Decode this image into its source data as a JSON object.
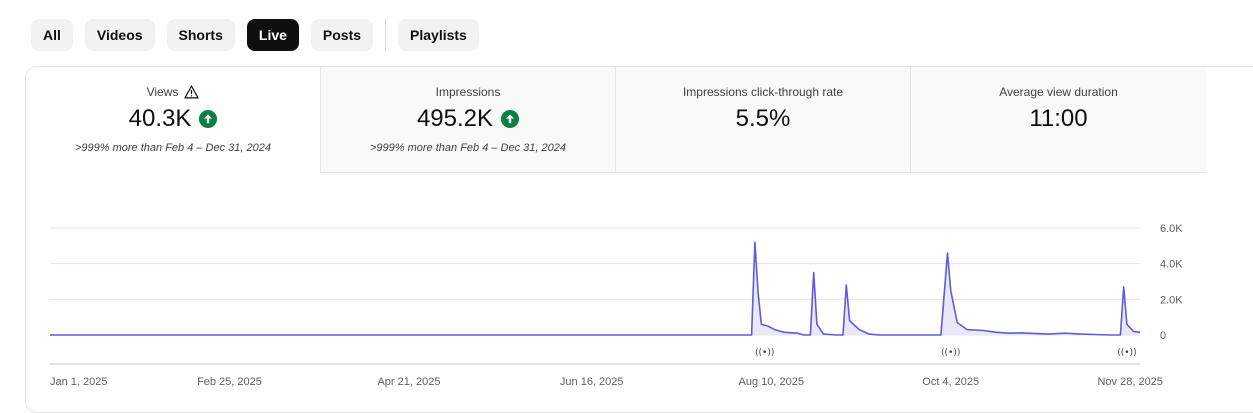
{
  "filters": {
    "chips": [
      {
        "label": "All",
        "active": false
      },
      {
        "label": "Videos",
        "active": false
      },
      {
        "label": "Shorts",
        "active": false
      },
      {
        "label": "Live",
        "active": true
      },
      {
        "label": "Posts",
        "active": false
      }
    ],
    "playlists_label": "Playlists"
  },
  "metrics": [
    {
      "label": "Views",
      "value": "40.3K",
      "compare": ">999% more than Feb 4 – Dec 31, 2024",
      "selected": true,
      "has_warning": true,
      "trend": "up"
    },
    {
      "label": "Impressions",
      "value": "495.2K",
      "compare": ">999% more than Feb 4 – Dec 31, 2024",
      "selected": false,
      "has_warning": false,
      "trend": "up"
    },
    {
      "label": "Impressions click-through rate",
      "value": "5.5%",
      "compare": "",
      "selected": false,
      "has_warning": false,
      "trend": ""
    },
    {
      "label": "Average view duration",
      "value": "11:00",
      "compare": "",
      "selected": false,
      "has_warning": false,
      "trend": ""
    }
  ],
  "colors": {
    "line": "#5c5ddb",
    "fill": "#e8e8f8",
    "up_badge": "#0b8043",
    "grid": "#e5e5e5",
    "active_chip": "#0f0f0f"
  },
  "chart_data": {
    "type": "area",
    "ylim": [
      0,
      6000
    ],
    "yticks": [
      "6.0K",
      "4.0K",
      "2.0K",
      "0"
    ],
    "ytick_values": [
      6000,
      4000,
      2000,
      0
    ],
    "xlim": [
      "2025-01-01",
      "2025-12-01"
    ],
    "xticks": [
      {
        "date": "2025-01-01",
        "label": "Jan 1, 2025"
      },
      {
        "date": "2025-02-25",
        "label": "Feb 25, 2025"
      },
      {
        "date": "2025-04-21",
        "label": "Apr 21, 2025"
      },
      {
        "date": "2025-06-16",
        "label": "Jun 16, 2025"
      },
      {
        "date": "2025-08-10",
        "label": "Aug 10, 2025"
      },
      {
        "date": "2025-10-04",
        "label": "Oct 4, 2025"
      },
      {
        "date": "2025-11-28",
        "label": "Nov 28, 2025"
      }
    ],
    "live_markers": [
      {
        "date": "2025-08-08",
        "label": "((•))"
      },
      {
        "date": "2025-10-04",
        "label": "((•))"
      },
      {
        "date": "2025-11-27",
        "label": "((•))"
      }
    ],
    "series": [
      {
        "values": [
          {
            "date": "2025-01-01",
            "value": 0
          },
          {
            "date": "2025-08-04",
            "value": 0
          },
          {
            "date": "2025-08-05",
            "value": 5200
          },
          {
            "date": "2025-08-06",
            "value": 2300
          },
          {
            "date": "2025-08-07",
            "value": 600
          },
          {
            "date": "2025-08-09",
            "value": 500
          },
          {
            "date": "2025-08-11",
            "value": 300
          },
          {
            "date": "2025-08-14",
            "value": 150
          },
          {
            "date": "2025-08-18",
            "value": 100
          },
          {
            "date": "2025-08-20",
            "value": 0
          },
          {
            "date": "2025-08-22",
            "value": 0
          },
          {
            "date": "2025-08-23",
            "value": 3500
          },
          {
            "date": "2025-08-24",
            "value": 600
          },
          {
            "date": "2025-08-26",
            "value": 50
          },
          {
            "date": "2025-08-30",
            "value": 0
          },
          {
            "date": "2025-09-01",
            "value": 0
          },
          {
            "date": "2025-09-02",
            "value": 2800
          },
          {
            "date": "2025-09-03",
            "value": 800
          },
          {
            "date": "2025-09-06",
            "value": 300
          },
          {
            "date": "2025-09-09",
            "value": 50
          },
          {
            "date": "2025-09-12",
            "value": 0
          },
          {
            "date": "2025-10-01",
            "value": 0
          },
          {
            "date": "2025-10-03",
            "value": 4600
          },
          {
            "date": "2025-10-04",
            "value": 2500
          },
          {
            "date": "2025-10-06",
            "value": 700
          },
          {
            "date": "2025-10-09",
            "value": 300
          },
          {
            "date": "2025-10-14",
            "value": 250
          },
          {
            "date": "2025-10-18",
            "value": 150
          },
          {
            "date": "2025-10-22",
            "value": 100
          },
          {
            "date": "2025-10-26",
            "value": 120
          },
          {
            "date": "2025-10-30",
            "value": 80
          },
          {
            "date": "2025-11-03",
            "value": 50
          },
          {
            "date": "2025-11-08",
            "value": 100
          },
          {
            "date": "2025-11-12",
            "value": 60
          },
          {
            "date": "2025-11-17",
            "value": 30
          },
          {
            "date": "2025-11-22",
            "value": 0
          },
          {
            "date": "2025-11-25",
            "value": 0
          },
          {
            "date": "2025-11-26",
            "value": 2700
          },
          {
            "date": "2025-11-27",
            "value": 600
          },
          {
            "date": "2025-11-29",
            "value": 200
          },
          {
            "date": "2025-12-01",
            "value": 150
          }
        ]
      }
    ]
  }
}
